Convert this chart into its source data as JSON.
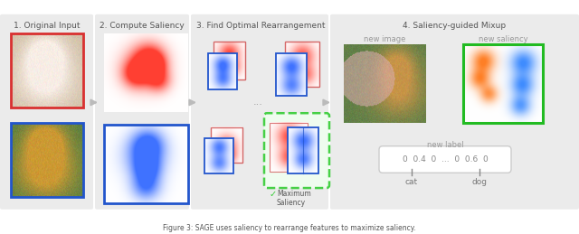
{
  "step_titles": [
    "1. Original Input",
    "2. Compute Saliency",
    "3. Find Optimal Rearrangement",
    "4. Saliency-guided Mixup"
  ],
  "label_box_text": "0  0.4  0  ...  0  0.6  0",
  "new_image_label": "new image",
  "new_saliency_label": "new saliency",
  "new_label_label": "new label",
  "cat_label": "cat",
  "dog_label": "dog",
  "max_saliency_text": "Maximum\nSaliency",
  "red_border": "#d93030",
  "blue_border": "#2255cc",
  "green_border": "#22bb22",
  "green_dashed": "#33cc33",
  "panel_bg": "#ebebeb",
  "panel_divider": "#d8d8d8",
  "title_color": "#555555",
  "arrow_color": "#bbbbbb"
}
